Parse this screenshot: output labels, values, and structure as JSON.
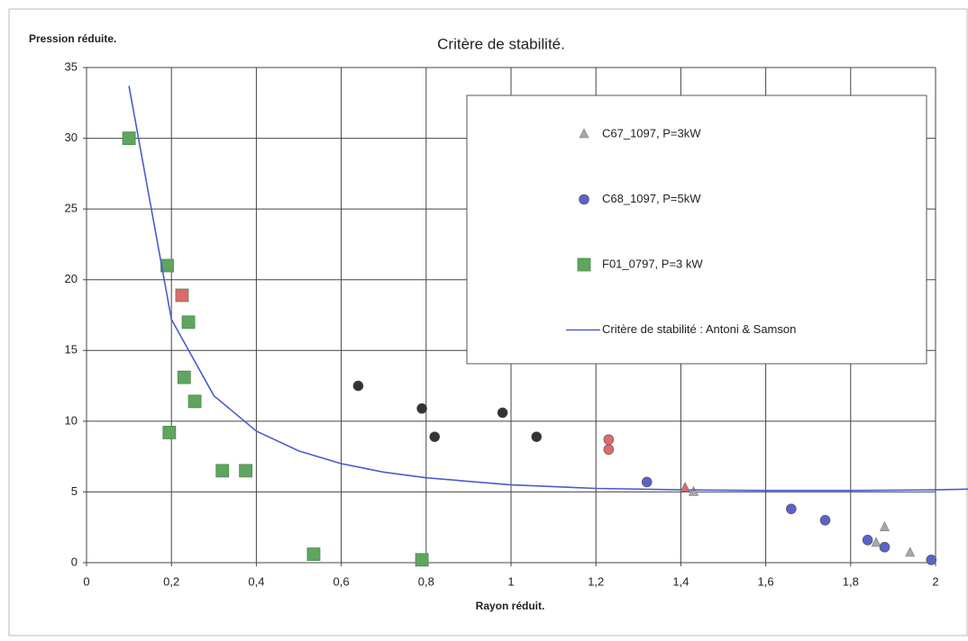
{
  "chart_data": {
    "type": "scatter",
    "title": "Critère de stabilité.",
    "y_label": "Pression réduite.",
    "x_label": "Rayon réduit.",
    "xlim": [
      0,
      2
    ],
    "ylim": [
      0,
      35
    ],
    "xticks": [
      0,
      {
        "value": 0.2,
        "label": "0,2"
      },
      {
        "value": 0.4,
        "label": "0,4"
      },
      {
        "value": 0.6,
        "label": "0,6"
      },
      {
        "value": 0.8,
        "label": "0,8"
      },
      1,
      {
        "value": 1.2,
        "label": "1,2"
      },
      {
        "value": 1.4,
        "label": "1,4"
      },
      {
        "value": 1.6,
        "label": "1,6"
      },
      {
        "value": 1.8,
        "label": "1,8"
      },
      2
    ],
    "yticks": [
      0,
      5,
      10,
      15,
      20,
      25,
      30,
      35
    ],
    "grid": true,
    "legend": "upper right",
    "series": [
      {
        "name": "C67_1097, P=3kW",
        "color": "#a8a8a8",
        "marker": "triangle",
        "x": [
          1.43,
          1.86,
          1.88,
          1.94
        ],
        "values": [
          5.0,
          1.4,
          2.5,
          0.7
        ]
      },
      {
        "name": "C68_1097, P=5kW",
        "color": "#5a63c8",
        "marker": "circle",
        "x": [
          1.32,
          1.66,
          1.74,
          1.84,
          1.88,
          1.99
        ],
        "values": [
          5.7,
          3.8,
          3.0,
          1.6,
          1.1,
          0.2
        ]
      },
      {
        "name": "F01_0797, P=3 kW",
        "color": "#5fa55f",
        "marker": "square",
        "x": [
          0.1,
          0.19,
          0.24,
          0.23,
          0.255,
          0.195,
          0.32,
          0.375,
          0.535,
          0.79
        ],
        "values": [
          30.0,
          21.0,
          17.0,
          13.1,
          11.4,
          9.2,
          6.5,
          6.5,
          0.6,
          0.2
        ]
      },
      {
        "name": "Critère de stabilité : Antoni & Samson",
        "color": "#4a5ccc",
        "marker": "line",
        "x": [
          0.1,
          0.2,
          0.3,
          0.4,
          0.5,
          0.6,
          0.7,
          0.8,
          0.9,
          1.0,
          1.2,
          1.4,
          1.6,
          1.8,
          2.0,
          2.08
        ],
        "values": [
          33.7,
          17.2,
          11.8,
          9.3,
          7.9,
          7.0,
          6.4,
          6.0,
          5.75,
          5.5,
          5.25,
          5.15,
          5.1,
          5.1,
          5.15,
          5.2
        ]
      },
      {
        "color": "#333333",
        "marker": "circle",
        "x": [
          0.64,
          0.79,
          0.82,
          0.98,
          1.06
        ],
        "values": [
          12.5,
          10.9,
          8.9,
          10.6,
          8.9
        ]
      },
      {
        "color": "#e06a6a",
        "marker": "circle",
        "x": [
          1.23,
          1.23
        ],
        "values": [
          8.7,
          8.0
        ]
      },
      {
        "color": "#e06a6a",
        "marker": "square",
        "x": [
          0.225
        ],
        "values": [
          18.9
        ]
      },
      {
        "color": "#e06a6a",
        "marker": "triangle",
        "x": [
          1.41
        ],
        "values": [
          5.3
        ]
      }
    ]
  }
}
